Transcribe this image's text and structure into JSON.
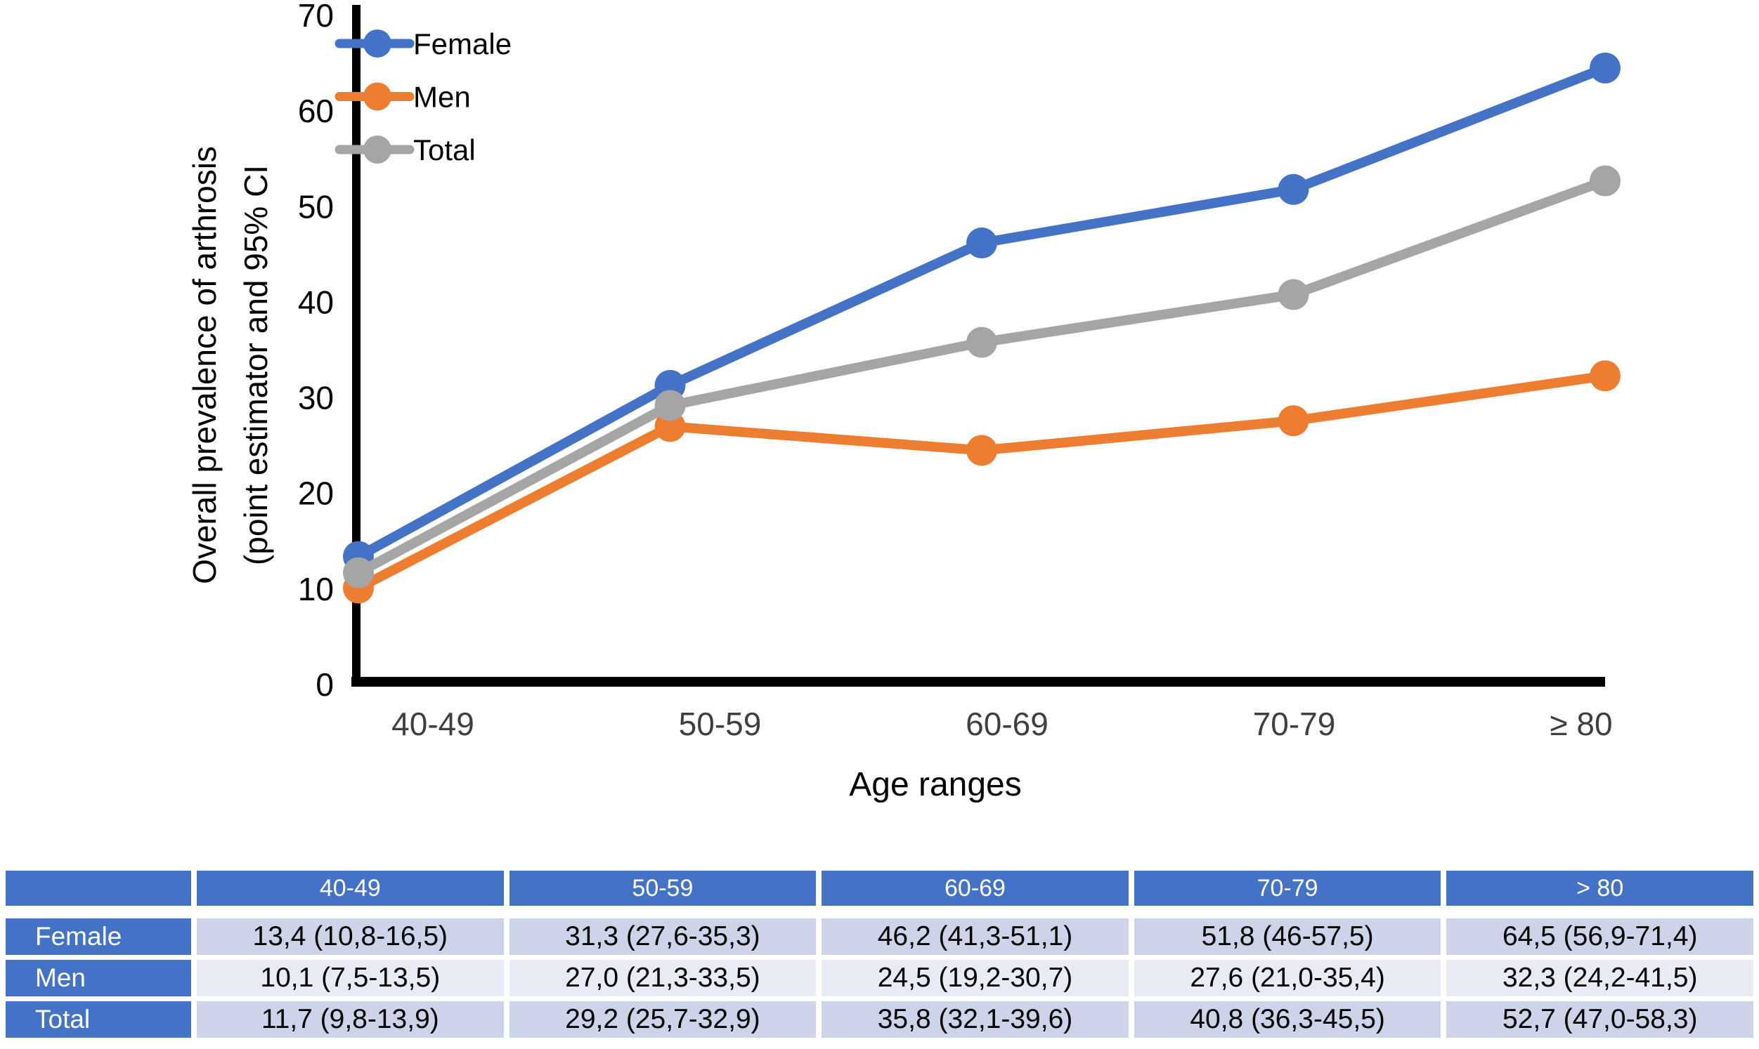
{
  "chart_data": {
    "type": "line",
    "title": "",
    "xlabel": "Age ranges",
    "ylabel_line1": "Overall prevalence of arthrosis",
    "ylabel_line2": "(point estimator and 95% CI",
    "categories": [
      "40-49",
      "50-59",
      "60-69",
      "70-79",
      "≥ 80"
    ],
    "series": [
      {
        "name": "Female",
        "color": "#4472C4",
        "values": [
          13.4,
          31.3,
          46.2,
          51.8,
          64.5
        ]
      },
      {
        "name": "Men",
        "color": "#ED7D31",
        "values": [
          10.1,
          27.0,
          24.5,
          27.6,
          32.3
        ]
      },
      {
        "name": "Total",
        "color": "#A5A5A5",
        "values": [
          11.7,
          29.2,
          35.8,
          40.8,
          52.7
        ]
      }
    ],
    "ylim": [
      0,
      70
    ],
    "yticks": [
      0,
      10,
      20,
      30,
      40,
      50,
      60,
      70
    ],
    "legend_position": "top-left-inside",
    "grid": false,
    "axis_color": "#000000",
    "x_tick_color": "#3f3f3f",
    "y_tick_color": "#000000"
  },
  "table": {
    "header": [
      "",
      "40-49",
      "50-59",
      "60-69",
      "70-79",
      "> 80"
    ],
    "rows": [
      {
        "label": "Female",
        "cells": [
          "13,4 (10,8-16,5)",
          "31,3 (27,6-35,3)",
          "46,2 (41,3-51,1)",
          "51,8 (46-57,5)",
          "64,5 (56,9-71,4)"
        ]
      },
      {
        "label": "Men",
        "cells": [
          "10,1 (7,5-13,5)",
          "27,0 (21,3-33,5)",
          "24,5 (19,2-30,7)",
          "27,6 (21,0-35,4)",
          "32,3 (24,2-41,5)"
        ]
      },
      {
        "label": "Total",
        "cells": [
          "11,7 (9,8-13,9)",
          "29,2 (25,7-32,9)",
          "35,8 (32,1-39,6)",
          "40,8 (36,3-45,5)",
          "52,7 (47,0-58,3)"
        ]
      }
    ],
    "colors": {
      "header_bg": "#4472C4",
      "row_label_bg": "#4472C4",
      "band1": "#CDD3E9",
      "band2": "#E9EBF4",
      "header_text": "#FFFFFF"
    }
  }
}
